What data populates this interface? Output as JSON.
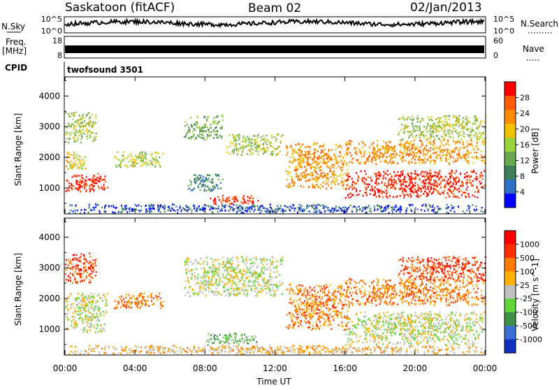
{
  "header": {
    "station": "Saskatoon (fitACF)",
    "beam": "Beam 02",
    "date": "02/Jan/2013"
  },
  "strips": {
    "nsky_label": "N.Sky",
    "nsky_ticks": [
      "10^5",
      "10^0"
    ],
    "nsearch_label": "N.Search",
    "nsearch_ticks": [
      "10^5",
      "10^0"
    ],
    "freq_label_1": "Freq.",
    "freq_label_2": "[MHz]",
    "freq_ticks": [
      "18",
      "8"
    ],
    "nave_label": "Nave",
    "nave_ticks": [
      "60",
      "0"
    ],
    "cpid_label": "CPID",
    "cpid_value": "twofsound 3501"
  },
  "axes": {
    "ylabel": "Slant Range [km]",
    "yticks": [
      "4000",
      "3000",
      "2000",
      "1000"
    ],
    "xlabel": "Time UT",
    "xticks": [
      "00:00",
      "04:00",
      "08:00",
      "12:00",
      "16:00",
      "20:00",
      "00:00"
    ]
  },
  "colors": {
    "power": [
      "#0000ff",
      "#2e6fc7",
      "#3d7f5a",
      "#6aa84f",
      "#9bd33c",
      "#f2c200",
      "#ff8c00",
      "#ff5a00",
      "#ff0000"
    ],
    "velocity": [
      "#1030c0",
      "#3b6fd6",
      "#3d8f4a",
      "#5fd63a",
      "#c0c0c0",
      "#ffb000",
      "#ff7a00",
      "#ff3000",
      "#ff0000"
    ],
    "gray": "#bdbdbd"
  },
  "chart_data": [
    {
      "type": "heatmap",
      "panel": "power",
      "ylabel": "Slant Range [km]",
      "xlabel": "Time UT",
      "xlim": [
        0,
        24
      ],
      "ylim": [
        180,
        4600
      ],
      "colorbar": {
        "label": "Power [dB]",
        "ticks": [
          "28",
          "24",
          "20",
          "16",
          "12",
          "8",
          "4"
        ]
      },
      "regions": [
        {
          "t0": 0.0,
          "t1": 2.4,
          "r0": 900,
          "r1": 1500,
          "level": 8
        },
        {
          "t0": 0.0,
          "t1": 1.2,
          "r0": 1600,
          "r1": 2200,
          "level": 5
        },
        {
          "t0": 0.0,
          "t1": 1.8,
          "r0": 2500,
          "r1": 3500,
          "level": 4
        },
        {
          "t0": 2.8,
          "t1": 5.6,
          "r0": 1700,
          "r1": 2200,
          "level": 4
        },
        {
          "t0": 6.8,
          "t1": 9.0,
          "r0": 2600,
          "r1": 3400,
          "level": 3
        },
        {
          "t0": 9.2,
          "t1": 12.4,
          "r0": 2100,
          "r1": 2800,
          "level": 4
        },
        {
          "t0": 7.0,
          "t1": 9.0,
          "r0": 900,
          "r1": 1500,
          "level": 2
        },
        {
          "t0": 8.2,
          "t1": 11.0,
          "r0": 500,
          "r1": 800,
          "level": 8
        },
        {
          "t0": 12.6,
          "t1": 16.2,
          "r0": 1000,
          "r1": 2500,
          "level": 6
        },
        {
          "t0": 16.0,
          "t1": 24.0,
          "r0": 700,
          "r1": 1600,
          "level": 8
        },
        {
          "t0": 16.0,
          "t1": 24.0,
          "r0": 1800,
          "r1": 2600,
          "level": 6
        },
        {
          "t0": 19.0,
          "t1": 24.0,
          "r0": 2600,
          "r1": 3400,
          "level": 4
        },
        {
          "t0": 0.0,
          "t1": 24.0,
          "r0": 200,
          "r1": 500,
          "level": 1
        }
      ]
    },
    {
      "type": "heatmap",
      "panel": "velocity",
      "ylabel": "Slant Range [km]",
      "xlabel": "Time UT",
      "xlim": [
        0,
        24
      ],
      "ylim": [
        180,
        4600
      ],
      "colorbar": {
        "label": "Velocity [m s^-1]",
        "ticks": [
          "1000",
          "500",
          "100",
          "25",
          "-25",
          "-100",
          "-500",
          "-1000"
        ]
      },
      "regions": [
        {
          "t0": 0.0,
          "t1": 2.4,
          "r0": 900,
          "r1": 2200,
          "level": 4
        },
        {
          "t0": 0.0,
          "t1": 1.8,
          "r0": 2500,
          "r1": 3500,
          "level": 7
        },
        {
          "t0": 2.8,
          "t1": 5.6,
          "r0": 1700,
          "r1": 2200,
          "level": 6
        },
        {
          "t0": 6.8,
          "t1": 12.4,
          "r0": 2100,
          "r1": 3400,
          "level": 4
        },
        {
          "t0": 8.0,
          "t1": 11.0,
          "r0": 500,
          "r1": 900,
          "level": 3
        },
        {
          "t0": 12.6,
          "t1": 16.2,
          "r0": 1000,
          "r1": 2500,
          "level": 6
        },
        {
          "t0": 16.0,
          "t1": 24.0,
          "r0": 500,
          "r1": 1600,
          "level": 4
        },
        {
          "t0": 16.0,
          "t1": 24.0,
          "r0": 1800,
          "r1": 2700,
          "level": 6
        },
        {
          "t0": 19.0,
          "t1": 24.0,
          "r0": 2600,
          "r1": 3400,
          "level": 7
        },
        {
          "t0": 0.0,
          "t1": 24.0,
          "r0": 200,
          "r1": 500,
          "level": 5
        }
      ]
    }
  ]
}
